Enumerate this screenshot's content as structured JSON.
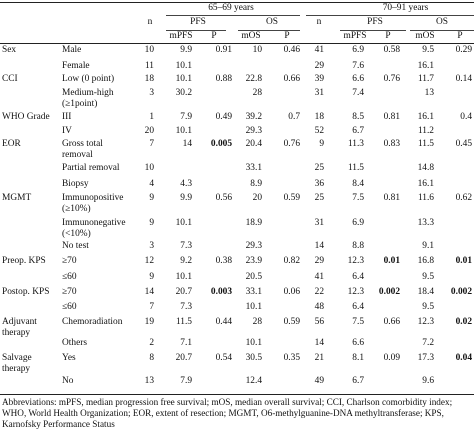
{
  "header": {
    "group_left": "65–69 years",
    "group_right": "70–91 years",
    "pfs": "PFS",
    "os": "OS",
    "n": "n",
    "mpfs": "mPFS",
    "p": "P",
    "mos": "mOS"
  },
  "rows": [
    {
      "var": "Sex",
      "cat": [
        "Male"
      ],
      "n1": "10",
      "mpfs1": "9.9",
      "p1": "0.91",
      "mos1": "10",
      "pos1": "0.46",
      "n2": "41",
      "mpfs2": "6.9",
      "p2": "0.58",
      "mos2": "9.5",
      "pos2": "0.29"
    },
    {
      "var": "",
      "cat": [
        "Female"
      ],
      "n1": "11",
      "mpfs1": "10.1",
      "p1": "",
      "mos1": "",
      "pos1": "",
      "n2": "29",
      "mpfs2": "7.6",
      "p2": "",
      "mos2": "16.1",
      "pos2": ""
    },
    {
      "var": "CCI",
      "cat": [
        "Low (0 point)"
      ],
      "n1": "18",
      "mpfs1": "10.1",
      "p1": "0.88",
      "mos1": "22.8",
      "pos1": "0.66",
      "n2": "39",
      "mpfs2": "6.6",
      "p2": "0.76",
      "mos2": "11.7",
      "pos2": "0.14"
    },
    {
      "var": "",
      "cat": [
        "Medium-high",
        "(≥1point)"
      ],
      "n1": "3",
      "mpfs1": "30.2",
      "p1": "",
      "mos1": "28",
      "pos1": "",
      "n2": "31",
      "mpfs2": "7.4",
      "p2": "",
      "mos2": "13",
      "pos2": ""
    },
    {
      "var": "WHO Grade",
      "cat": [
        "III"
      ],
      "n1": "1",
      "mpfs1": "7.9",
      "p1": "0.49",
      "mos1": "39.2",
      "pos1": "0.7",
      "n2": "18",
      "mpfs2": "8.5",
      "p2": "0.81",
      "mos2": "16.1",
      "pos2": "0.4"
    },
    {
      "var": "",
      "cat": [
        "IV"
      ],
      "n1": "20",
      "mpfs1": "10.1",
      "p1": "",
      "mos1": "29.3",
      "pos1": "",
      "n2": "52",
      "mpfs2": "6.7",
      "p2": "",
      "mos2": "11.2",
      "pos2": ""
    },
    {
      "var": "EOR",
      "cat": [
        "Gross total",
        "removal"
      ],
      "n1": "7",
      "mpfs1": "14",
      "p1": "0.005",
      "mos1": "20.4",
      "pos1": "0.76",
      "n2": "9",
      "mpfs2": "11.3",
      "p2": "0.83",
      "mos2": "11.5",
      "pos2": "0.45"
    },
    {
      "var": "",
      "cat": [
        "Partial removal"
      ],
      "n1": "10",
      "mpfs1": "",
      "p1": "",
      "mos1": "33.1",
      "pos1": "",
      "n2": "25",
      "mpfs2": "11.5",
      "p2": "",
      "mos2": "14.8",
      "pos2": ""
    },
    {
      "var": "",
      "cat": [
        "Biopsy"
      ],
      "n1": "4",
      "mpfs1": "4.3",
      "p1": "",
      "mos1": "8.9",
      "pos1": "",
      "n2": "36",
      "mpfs2": "8.4",
      "p2": "",
      "mos2": "16.1",
      "pos2": ""
    },
    {
      "var": "MGMT",
      "cat": [
        "Immunopositive",
        "(≥10%)"
      ],
      "n1": "9",
      "mpfs1": "9.9",
      "p1": "0.56",
      "mos1": "20",
      "pos1": "0.59",
      "n2": "25",
      "mpfs2": "7.5",
      "p2": "0.81",
      "mos2": "11.6",
      "pos2": "0.62"
    },
    {
      "var": "",
      "cat": [
        "Immunonegative",
        "(<10%)"
      ],
      "n1": "9",
      "mpfs1": "10.1",
      "p1": "",
      "mos1": "18.9",
      "pos1": "",
      "n2": "31",
      "mpfs2": "6.9",
      "p2": "",
      "mos2": "13.3",
      "pos2": ""
    },
    {
      "var": "",
      "cat": [
        "No test"
      ],
      "n1": "3",
      "mpfs1": "7.3",
      "p1": "",
      "mos1": "29.3",
      "pos1": "",
      "n2": "14",
      "mpfs2": "8.8",
      "p2": "",
      "mos2": "9.1",
      "pos2": ""
    },
    {
      "var": "Preop. KPS",
      "cat": [
        "≥70"
      ],
      "n1": "12",
      "mpfs1": "9.2",
      "p1": "0.38",
      "mos1": "23.9",
      "pos1": "0.82",
      "n2": "29",
      "mpfs2": "12.3",
      "p2": "0.01",
      "mos2": "16.8",
      "pos2": "0.01"
    },
    {
      "var": "",
      "cat": [
        "≤60"
      ],
      "n1": "9",
      "mpfs1": "10.1",
      "p1": "",
      "mos1": "20.5",
      "pos1": "",
      "n2": "41",
      "mpfs2": "6.4",
      "p2": "",
      "mos2": "9.5",
      "pos2": ""
    },
    {
      "var": "Postop. KPS",
      "cat": [
        "≥70"
      ],
      "n1": "14",
      "mpfs1": "20.7",
      "p1": "0.003",
      "mos1": "33.1",
      "pos1": "0.06",
      "n2": "22",
      "mpfs2": "12.3",
      "p2": "0.002",
      "mos2": "18.4",
      "pos2": "0.002"
    },
    {
      "var": "",
      "cat": [
        "≤60"
      ],
      "n1": "7",
      "mpfs1": "7.3",
      "p1": "",
      "mos1": "10.1",
      "pos1": "",
      "n2": "48",
      "mpfs2": "6.4",
      "p2": "",
      "mos2": "9.5",
      "pos2": ""
    },
    {
      "var": "Adjuvant therapy",
      "cat": [
        "Chemoradiation"
      ],
      "n1": "19",
      "mpfs1": "11.5",
      "p1": "0.44",
      "mos1": "28",
      "pos1": "0.59",
      "n2": "56",
      "mpfs2": "7.5",
      "p2": "0.66",
      "mos2": "12.3",
      "pos2": "0.02"
    },
    {
      "var": "",
      "cat": [
        "Others"
      ],
      "n1": "2",
      "mpfs1": "7.1",
      "p1": "",
      "mos1": "10.1",
      "pos1": "",
      "n2": "14",
      "mpfs2": "6.6",
      "p2": "",
      "mos2": "7.2",
      "pos2": ""
    },
    {
      "var": "Salvage therapy",
      "cat": [
        "Yes"
      ],
      "n1": "8",
      "mpfs1": "20.7",
      "p1": "0.54",
      "mos1": "30.5",
      "pos1": "0.35",
      "n2": "21",
      "mpfs2": "8.1",
      "p2": "0.09",
      "mos2": "17.3",
      "pos2": "0.04"
    },
    {
      "var": "",
      "cat": [
        "No"
      ],
      "n1": "13",
      "mpfs1": "7.9",
      "p1": "",
      "mos1": "12.4",
      "pos1": "",
      "n2": "49",
      "mpfs2": "6.7",
      "p2": "",
      "mos2": "9.6",
      "pos2": ""
    }
  ],
  "footnote": "Abbreviations: mPFS, median progression free survival; mOS, median overall survival; CCI, Charlson comorbidity index; WHO, World Health Organization; EOR, extent of resection; MGMT, O6-methylguanine-DNA methyltransferase; KPS, Karnofsky Performance Status"
}
